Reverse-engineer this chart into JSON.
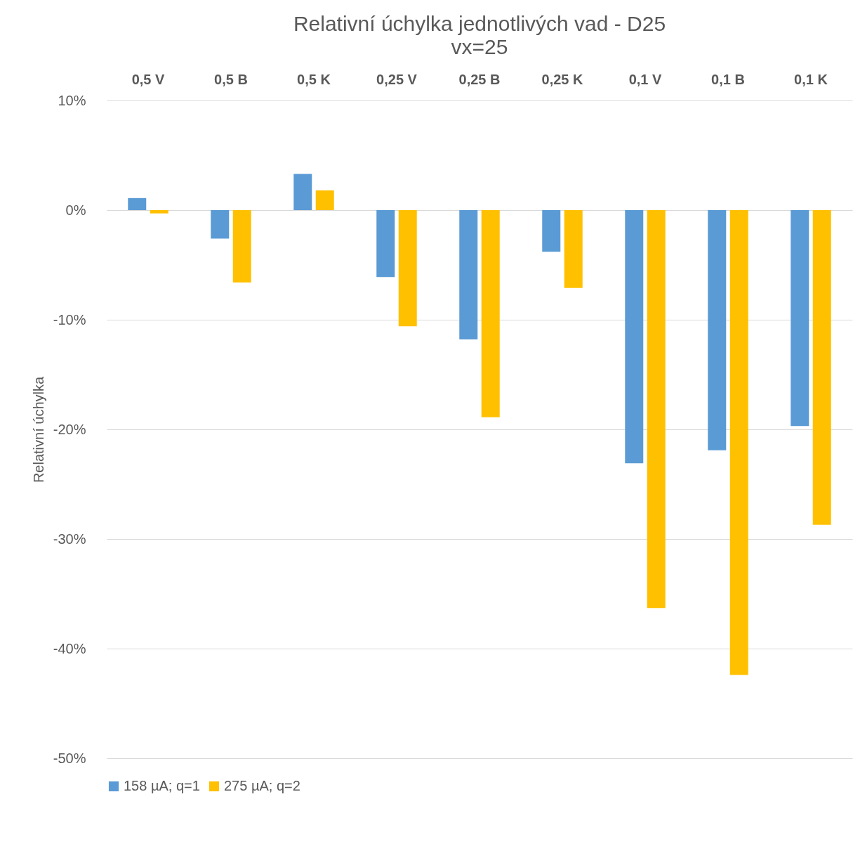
{
  "chart_data": {
    "type": "bar",
    "title": "Relativní úchylka jednotlivých vad - D25",
    "subtitle": "vx=25",
    "ylabel": "Relativní úchylka",
    "categories": [
      "0,5 V",
      "0,5 B",
      "0,5 K",
      "0,25 V",
      "0,25 B",
      "0,25 K",
      "0,1 V",
      "0,1 B",
      "0,1 K"
    ],
    "series": [
      {
        "name": "158 µA; q=1",
        "color": "#5b9bd5",
        "values": [
          1.1,
          -2.6,
          3.3,
          -6.1,
          -11.8,
          -3.8,
          -23.1,
          -21.9,
          -19.7
        ]
      },
      {
        "name": "275 µA; q=2",
        "color": "#ffc000",
        "values": [
          -0.3,
          -6.6,
          1.8,
          -10.6,
          -18.9,
          -7.1,
          -36.3,
          -42.4,
          -28.7
        ]
      }
    ],
    "ylim": [
      -50,
      10
    ],
    "yticks": [
      {
        "value": -50,
        "label": "-50%"
      },
      {
        "value": -40,
        "label": "-40%"
      },
      {
        "value": -30,
        "label": "-30%"
      },
      {
        "value": -20,
        "label": "-20%"
      },
      {
        "value": -10,
        "label": "-10%"
      },
      {
        "value": 0,
        "label": "0%"
      },
      {
        "value": 10,
        "label": "10%"
      }
    ],
    "grid": "y",
    "legend": "bottom"
  }
}
